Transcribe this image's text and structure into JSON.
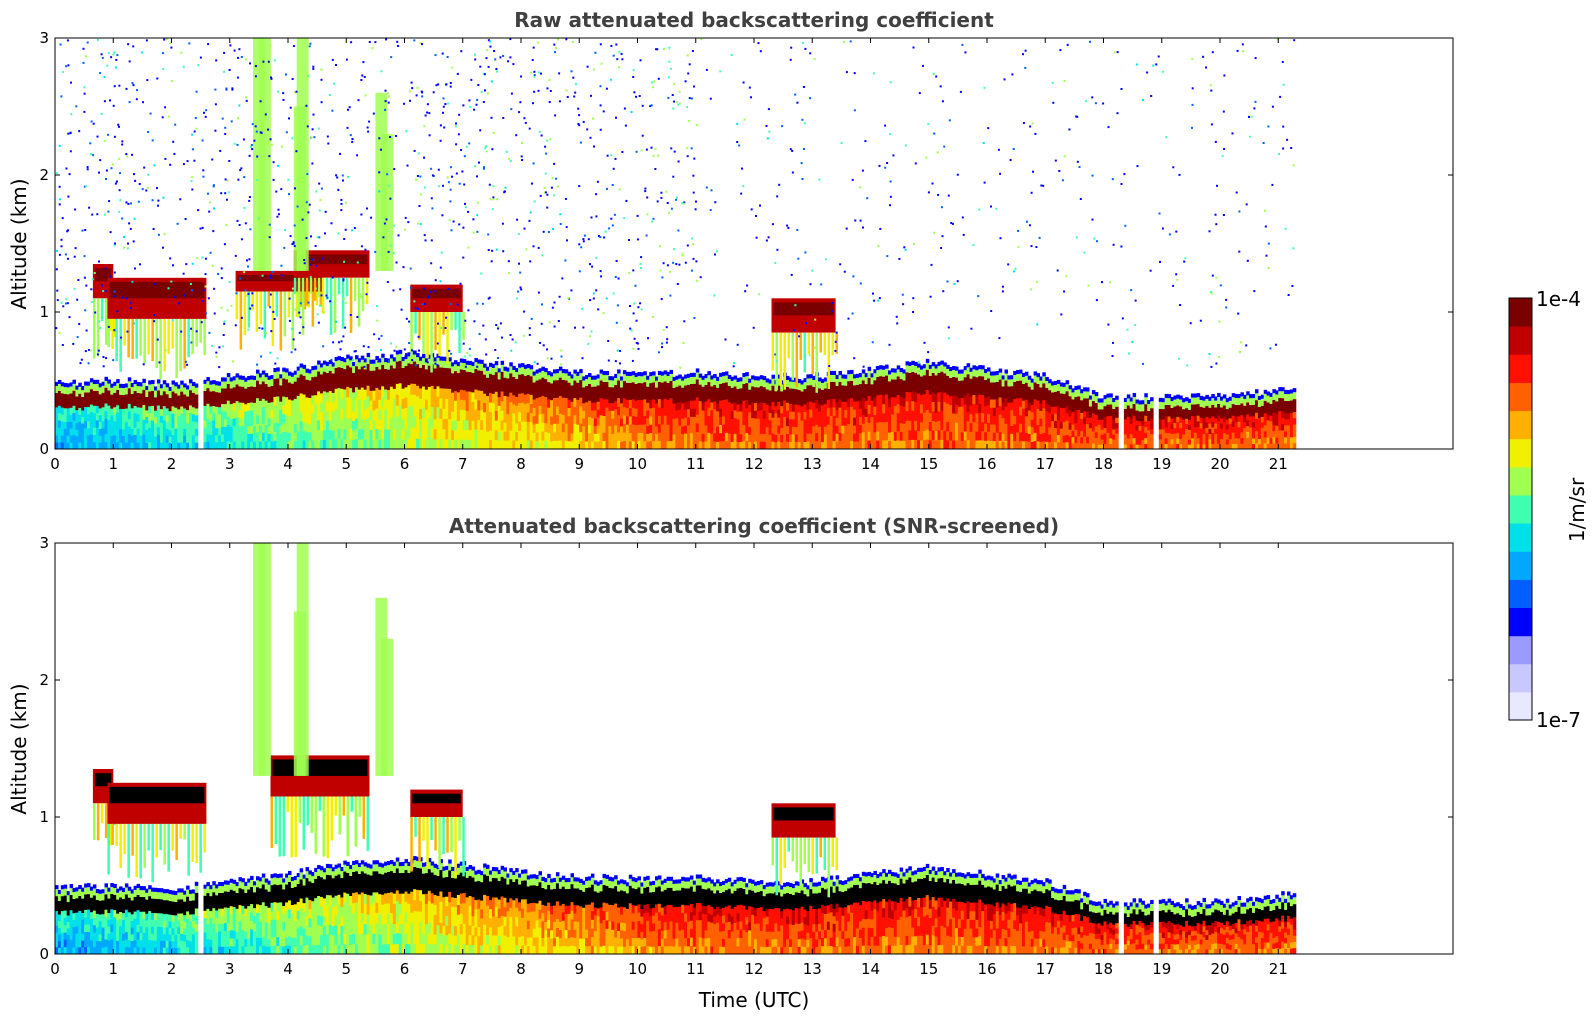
{
  "colors": {
    "background": "#ffffff",
    "title_text": "#404040",
    "colormap": [
      "#e8e8ff",
      "#c8c8ff",
      "#9a9aff",
      "#0000ff",
      "#0060ff",
      "#00a8ff",
      "#00e0e8",
      "#40ffb0",
      "#a0ff50",
      "#f0f000",
      "#ffb000",
      "#ff6000",
      "#ff1000",
      "#c00000",
      "#7a0000"
    ],
    "screened_saturation": "#000000"
  },
  "colorbar": {
    "label": "1/m/sr",
    "max_label": "1e-4",
    "min_label": "1e-7",
    "min": 1e-07,
    "max": 0.0001,
    "scale": "log"
  },
  "chart_data": [
    {
      "type": "heatmap",
      "title": "Raw attenuated backscattering coefficient",
      "xlabel": "",
      "ylabel": "Altitude (km)",
      "xlim": [
        0,
        24
      ],
      "ylim": [
        0,
        3
      ],
      "xticks": [
        0,
        1,
        2,
        3,
        4,
        5,
        6,
        7,
        8,
        9,
        10,
        11,
        12,
        13,
        14,
        15,
        16,
        17,
        18,
        19,
        20,
        21
      ],
      "yticks": [
        0,
        1,
        2,
        3
      ],
      "data_end_time": 21.3,
      "missing_time_gaps": [
        2.5,
        18.3,
        18.9
      ],
      "noise_above_layer": true,
      "boundary_layer_top_km": [
        {
          "x": 0,
          "y": 0.4
        },
        {
          "x": 1,
          "y": 0.42
        },
        {
          "x": 2,
          "y": 0.4
        },
        {
          "x": 3,
          "y": 0.45
        },
        {
          "x": 4,
          "y": 0.5
        },
        {
          "x": 5,
          "y": 0.58
        },
        {
          "x": 6,
          "y": 0.62
        },
        {
          "x": 7,
          "y": 0.57
        },
        {
          "x": 8,
          "y": 0.52
        },
        {
          "x": 9,
          "y": 0.48
        },
        {
          "x": 10,
          "y": 0.47
        },
        {
          "x": 11,
          "y": 0.48
        },
        {
          "x": 12,
          "y": 0.45
        },
        {
          "x": 13,
          "y": 0.45
        },
        {
          "x": 14,
          "y": 0.5
        },
        {
          "x": 15,
          "y": 0.55
        },
        {
          "x": 16,
          "y": 0.5
        },
        {
          "x": 17,
          "y": 0.45
        },
        {
          "x": 18,
          "y": 0.3
        },
        {
          "x": 19,
          "y": 0.3
        },
        {
          "x": 20,
          "y": 0.3
        },
        {
          "x": 21,
          "y": 0.35
        }
      ],
      "clouds": [
        {
          "x_start": 0.65,
          "x_end": 1.0,
          "base_km": 1.1,
          "top_km": 1.35,
          "level": "high"
        },
        {
          "x_start": 0.9,
          "x_end": 2.6,
          "base_km": 0.95,
          "top_km": 1.25,
          "level": "high"
        },
        {
          "x_start": 3.1,
          "x_end": 4.6,
          "base_km": 1.15,
          "top_km": 1.3,
          "level": "high"
        },
        {
          "x_start": 4.1,
          "x_end": 5.4,
          "base_km": 1.25,
          "top_km": 1.45,
          "level": "high"
        },
        {
          "x_start": 6.1,
          "x_end": 7.0,
          "base_km": 1.0,
          "top_km": 1.2,
          "level": "high"
        },
        {
          "x_start": 12.3,
          "x_end": 13.4,
          "base_km": 0.85,
          "top_km": 1.1,
          "level": "high"
        }
      ]
    },
    {
      "type": "heatmap",
      "title": "Attenuated backscattering coefficient (SNR-screened)",
      "xlabel": "Time (UTC)",
      "ylabel": "Altitude (km)",
      "xlim": [
        0,
        24
      ],
      "ylim": [
        0,
        3
      ],
      "xticks": [
        0,
        1,
        2,
        3,
        4,
        5,
        6,
        7,
        8,
        9,
        10,
        11,
        12,
        13,
        14,
        15,
        16,
        17,
        18,
        19,
        20,
        21
      ],
      "yticks": [
        0,
        1,
        2,
        3
      ],
      "data_end_time": 21.3,
      "missing_time_gaps": [
        2.5,
        18.3,
        18.9
      ],
      "noise_above_layer": false,
      "boundary_layer_top_km": [
        {
          "x": 0,
          "y": 0.4
        },
        {
          "x": 1,
          "y": 0.42
        },
        {
          "x": 2,
          "y": 0.4
        },
        {
          "x": 3,
          "y": 0.45
        },
        {
          "x": 4,
          "y": 0.5
        },
        {
          "x": 5,
          "y": 0.58
        },
        {
          "x": 6,
          "y": 0.62
        },
        {
          "x": 7,
          "y": 0.57
        },
        {
          "x": 8,
          "y": 0.52
        },
        {
          "x": 9,
          "y": 0.48
        },
        {
          "x": 10,
          "y": 0.47
        },
        {
          "x": 11,
          "y": 0.48
        },
        {
          "x": 12,
          "y": 0.45
        },
        {
          "x": 13,
          "y": 0.45
        },
        {
          "x": 14,
          "y": 0.5
        },
        {
          "x": 15,
          "y": 0.55
        },
        {
          "x": 16,
          "y": 0.5
        },
        {
          "x": 17,
          "y": 0.45
        },
        {
          "x": 18,
          "y": 0.3
        },
        {
          "x": 19,
          "y": 0.3
        },
        {
          "x": 20,
          "y": 0.3
        },
        {
          "x": 21,
          "y": 0.35
        }
      ],
      "clouds": [
        {
          "x_start": 0.65,
          "x_end": 1.0,
          "base_km": 1.1,
          "top_km": 1.35,
          "level": "saturated"
        },
        {
          "x_start": 0.9,
          "x_end": 2.6,
          "base_km": 0.95,
          "top_km": 1.25,
          "level": "saturated"
        },
        {
          "x_start": 3.7,
          "x_end": 5.4,
          "base_km": 1.15,
          "top_km": 1.45,
          "level": "saturated"
        },
        {
          "x_start": 6.1,
          "x_end": 7.0,
          "base_km": 1.0,
          "top_km": 1.2,
          "level": "saturated"
        },
        {
          "x_start": 12.3,
          "x_end": 13.4,
          "base_km": 0.85,
          "top_km": 1.1,
          "level": "saturated"
        }
      ]
    }
  ]
}
